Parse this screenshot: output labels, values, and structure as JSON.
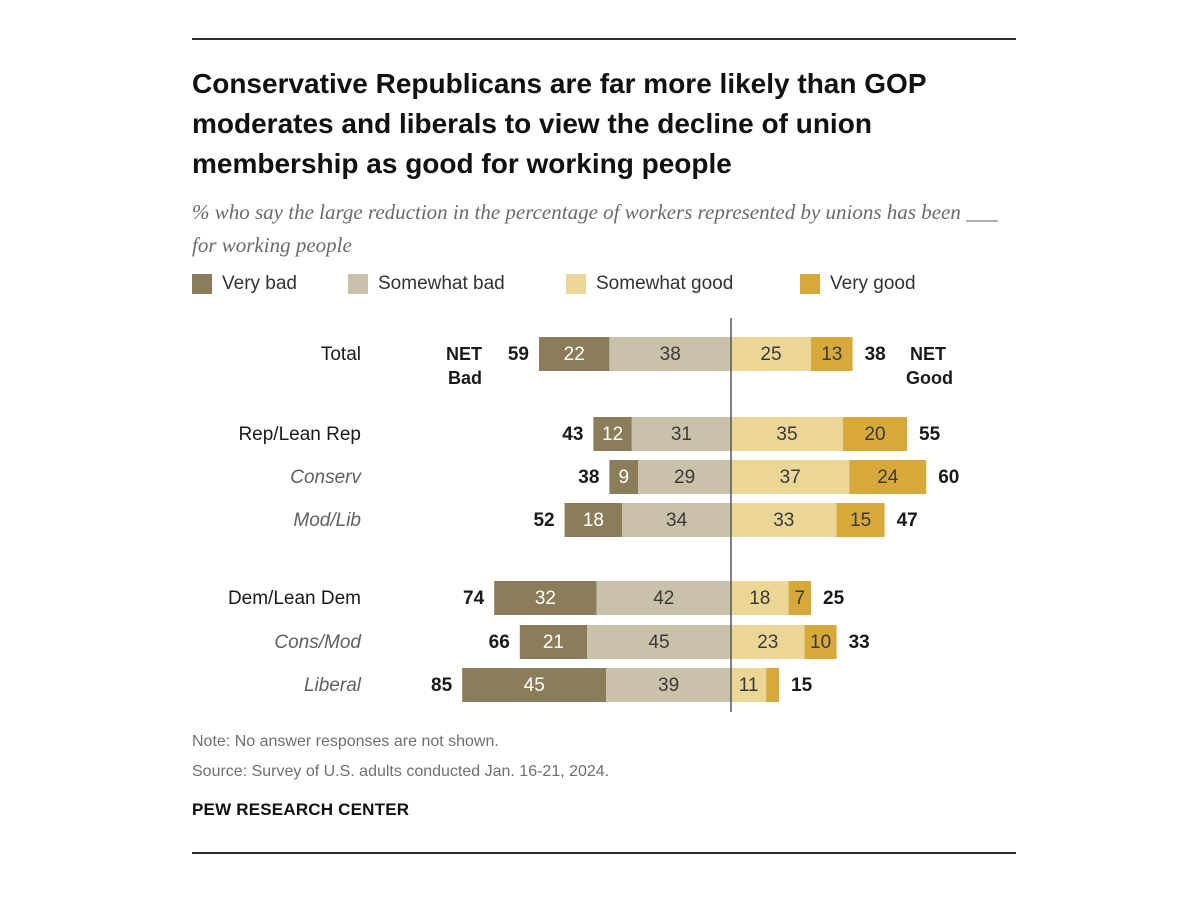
{
  "title": "Conservative Republicans are far more likely than GOP moderates and liberals to view the decline of union membership as good for working people",
  "subtitle": "% who say the large reduction in the percentage of workers represented by unions has been ___ for working people",
  "colors": {
    "very_bad": "#8c7d5a",
    "somewhat_bad": "#c9c1a9",
    "somewhat_good": "#ecd695",
    "very_good": "#d6a93a"
  },
  "chart_data": {
    "type": "bar",
    "orientation": "horizontal-diverging",
    "series": [
      {
        "name": "Very bad",
        "values": [
          22,
          12,
          9,
          18,
          32,
          21,
          45
        ]
      },
      {
        "name": "Somewhat bad",
        "values": [
          38,
          31,
          29,
          34,
          42,
          45,
          39
        ]
      },
      {
        "name": "Somewhat good",
        "values": [
          25,
          35,
          37,
          33,
          18,
          23,
          11
        ]
      },
      {
        "name": "Very good",
        "values": [
          13,
          20,
          24,
          15,
          7,
          10,
          4
        ]
      }
    ],
    "categories": [
      "Total",
      "Rep/Lean Rep",
      "Conserv",
      "Mod/Lib",
      "Dem/Lean Dem",
      "Cons/Mod",
      "Liberal"
    ],
    "italic_categories": [
      "Conserv",
      "Mod/Lib",
      "Cons/Mod",
      "Liberal"
    ],
    "segment_labels": [
      [
        "22",
        "38",
        "25",
        "13"
      ],
      [
        "12",
        "31",
        "35",
        "20"
      ],
      [
        "9",
        "29",
        "37",
        "24"
      ],
      [
        "18",
        "34",
        "33",
        "15"
      ],
      [
        "32",
        "42",
        "18",
        "7"
      ],
      [
        "21",
        "45",
        "23",
        "10"
      ],
      [
        "45",
        "39",
        "11",
        ""
      ]
    ],
    "net_bad": [
      59,
      43,
      38,
      52,
      74,
      66,
      85
    ],
    "net_good": [
      38,
      55,
      60,
      47,
      25,
      33,
      15
    ],
    "net_bad_label": [
      "NET",
      "Bad"
    ],
    "net_good_label": [
      "NET",
      "Good"
    ],
    "legend_position": "top-left"
  },
  "note": "Note: No answer responses are not shown.",
  "source": "Source: Survey of U.S. adults conducted Jan. 16-21, 2024.",
  "brand": "PEW RESEARCH CENTER"
}
